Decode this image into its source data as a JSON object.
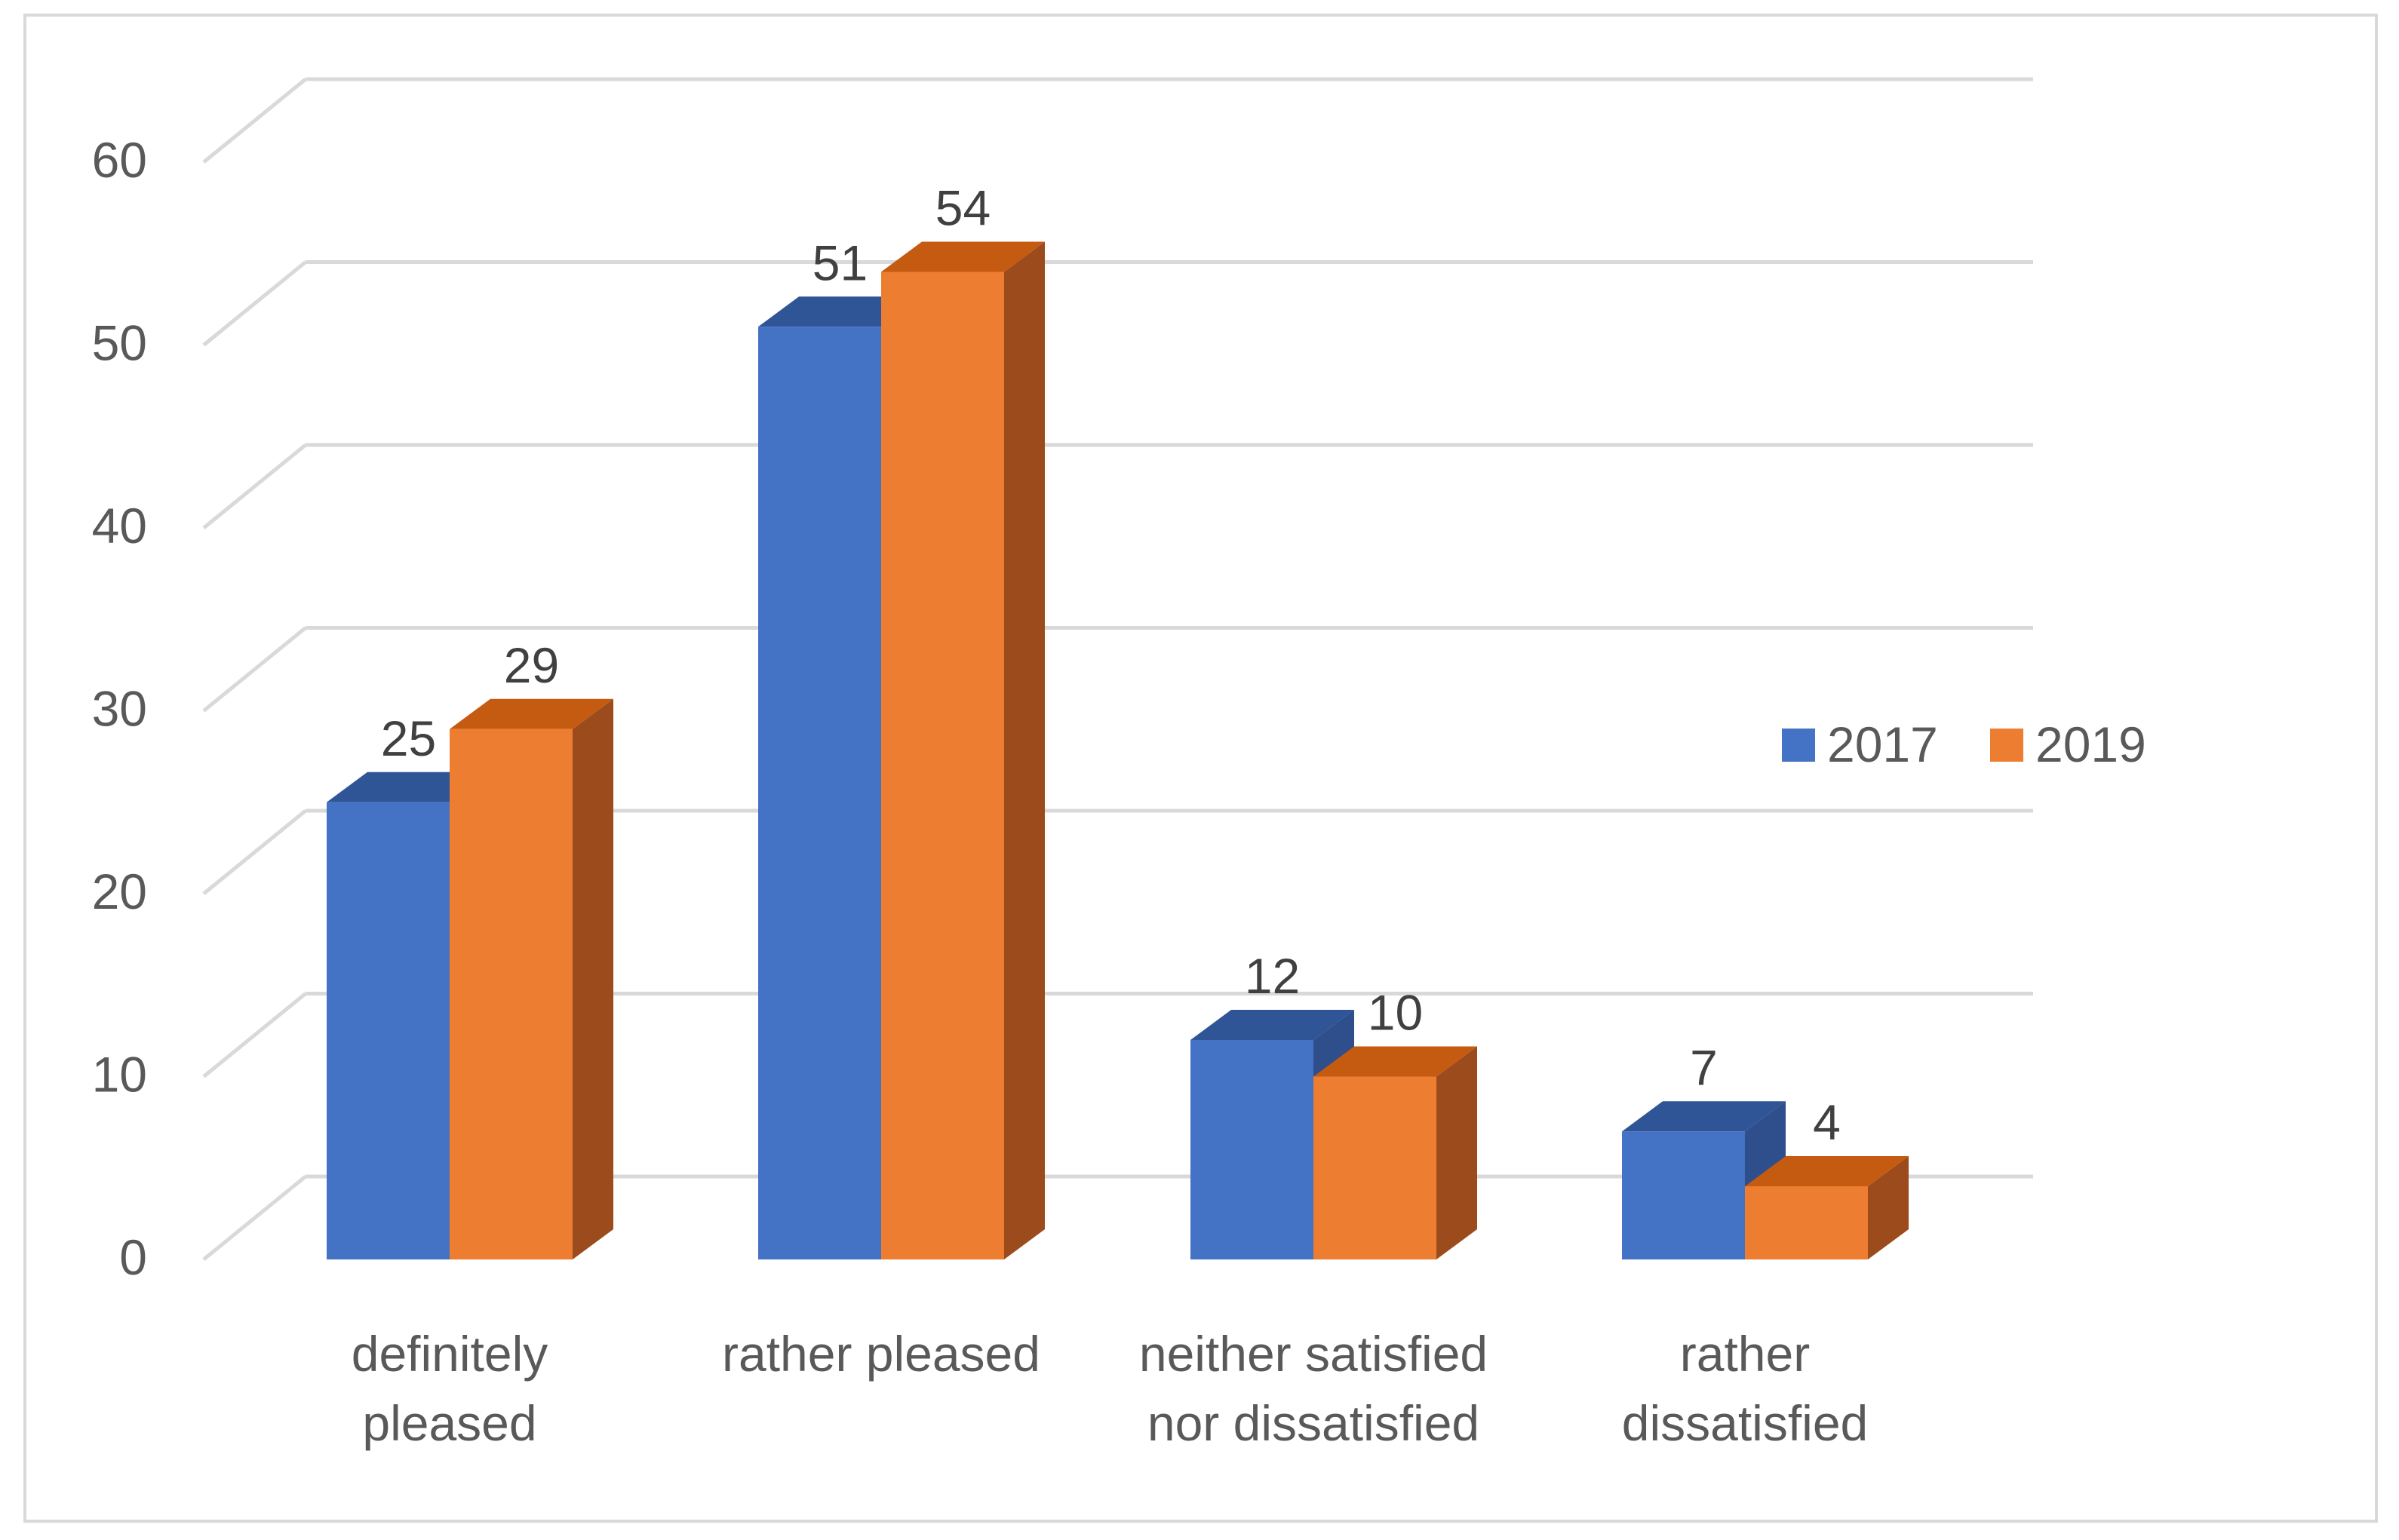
{
  "chart_data": {
    "type": "bar",
    "title": "",
    "xlabel": "",
    "ylabel": "",
    "categories": [
      [
        "definitely",
        "pleased"
      ],
      [
        "rather pleased"
      ],
      [
        "neither satisfied",
        "nor dissatisfied"
      ],
      [
        "rather",
        "dissatisfied"
      ]
    ],
    "series": [
      {
        "name": "2017",
        "values": [
          25,
          51,
          12,
          7
        ],
        "color": "#4472C4",
        "top_color": "#2F5597",
        "side_color": "#2E4E8C"
      },
      {
        "name": "2019",
        "values": [
          29,
          54,
          10,
          4
        ],
        "color": "#ED7D31",
        "top_color": "#C55A11",
        "side_color": "#9C4C1C"
      }
    ],
    "y_ticks": [
      "0",
      "10",
      "20",
      "30",
      "40",
      "50",
      "60"
    ],
    "ylim": [
      0,
      60
    ],
    "grid": true,
    "legend_position": "right",
    "data_labels": true,
    "style": "3d-clustered-column",
    "colors": {
      "gridline": "#D9D9D9",
      "axis_text": "#595959",
      "label_text": "#404040",
      "border": "#D9D9D9"
    }
  }
}
